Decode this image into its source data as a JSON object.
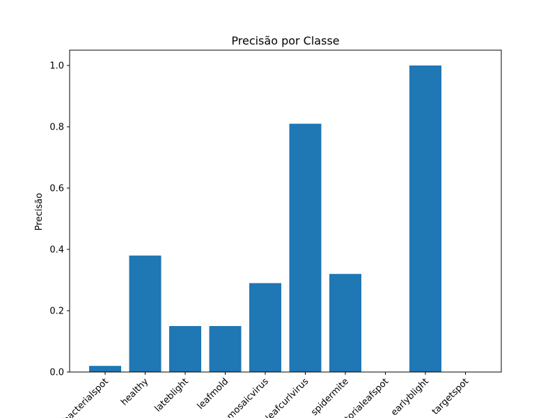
{
  "chart_data": {
    "type": "bar",
    "title": "Precisão por Classe",
    "xlabel": "",
    "ylabel": "Precisão",
    "ylim": [
      0,
      1.05
    ],
    "yticks": [
      "0.0",
      "0.2",
      "0.4",
      "0.6",
      "0.8",
      "1.0"
    ],
    "categories": [
      "bacterialspot",
      "healthy",
      "lateblight",
      "leafmold",
      "mosaicvirus",
      "leafcurlvirus",
      "spidermite",
      "septorialeafspot",
      "earlyblight",
      "targetspot"
    ],
    "values": [
      0.02,
      0.38,
      0.15,
      0.15,
      0.29,
      0.81,
      0.32,
      0.0,
      1.0,
      0.0
    ],
    "bar_color": "#1f77b4",
    "grid": false,
    "tick_label_rotation": 45
  }
}
